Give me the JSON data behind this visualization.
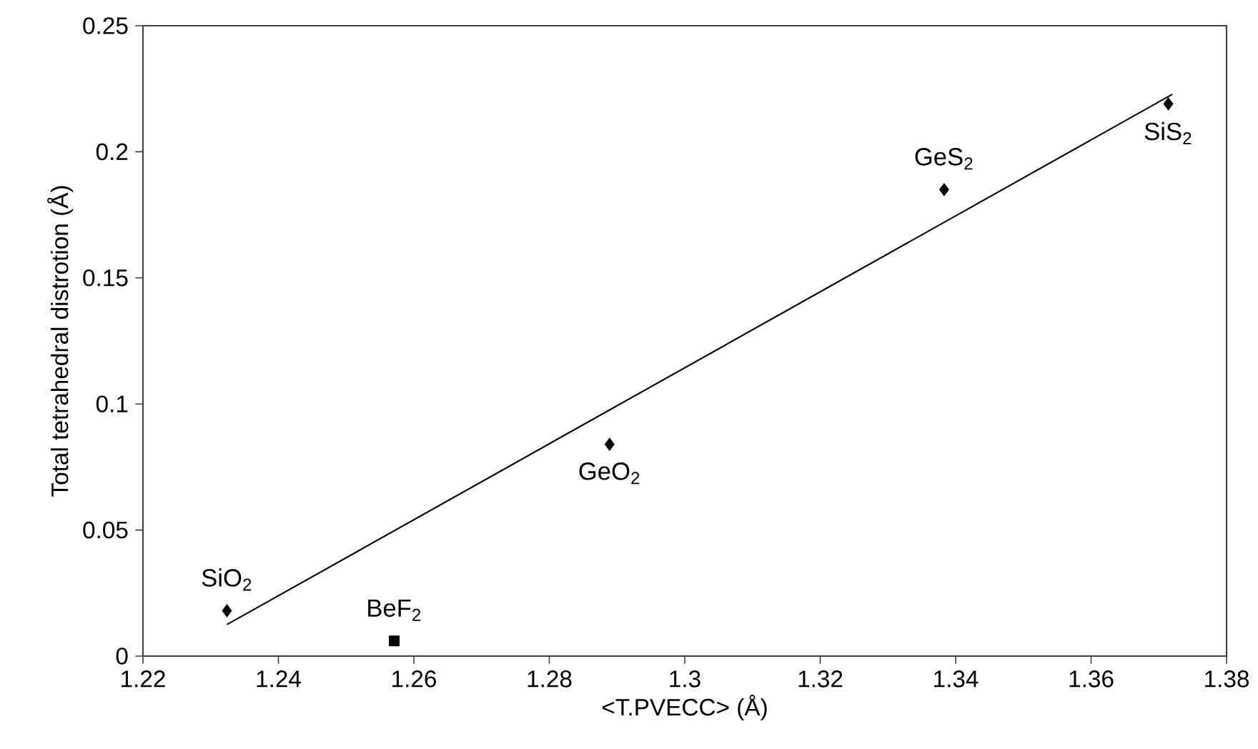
{
  "chart_data": {
    "type": "scatter",
    "xlabel": "<T.PVECC> (Å)",
    "ylabel": "Total tetrahedral distrotion (Å)",
    "series": [
      {
        "color": "#000000",
        "marker": "diamond",
        "x": [
          1.2324,
          1.2889,
          1.3383,
          1.3714
        ],
        "values": [
          0.018,
          0.084,
          0.185,
          0.219
        ]
      },
      {
        "color": "#000000",
        "marker": "square",
        "x": [
          1.2571
        ],
        "values": [
          0.006
        ]
      },
      {
        "type": "line",
        "color": "#000000",
        "marker": "none",
        "x": [
          1.2324,
          1.372
        ],
        "values": [
          0.0125,
          0.2228
        ]
      }
    ],
    "annotations": [
      {
        "text": "SiO$_{2}$",
        "x": 1.2324,
        "y": 0.018
      },
      {
        "text": "BeF$_{2}$",
        "x": 1.2571,
        "y": 0.006
      },
      {
        "text": "GeO$_{2}$",
        "x": 1.2889,
        "y": 0.084
      },
      {
        "text": "GeS$_{2}$",
        "x": 1.3383,
        "y": 0.185
      },
      {
        "text": "SiS$_{2}$",
        "x": 1.3714,
        "y": 0.219
      }
    ],
    "xlim": [
      1.22,
      1.38
    ],
    "xticks": [
      1.22,
      1.24,
      1.26,
      1.28,
      1.3,
      1.32,
      1.34,
      1.36,
      1.38
    ],
    "ylim": [
      0,
      0.25
    ],
    "yticks": [
      0,
      0.05,
      0.1,
      0.15,
      0.2,
      0.25
    ],
    "grid": false,
    "legend": false
  }
}
